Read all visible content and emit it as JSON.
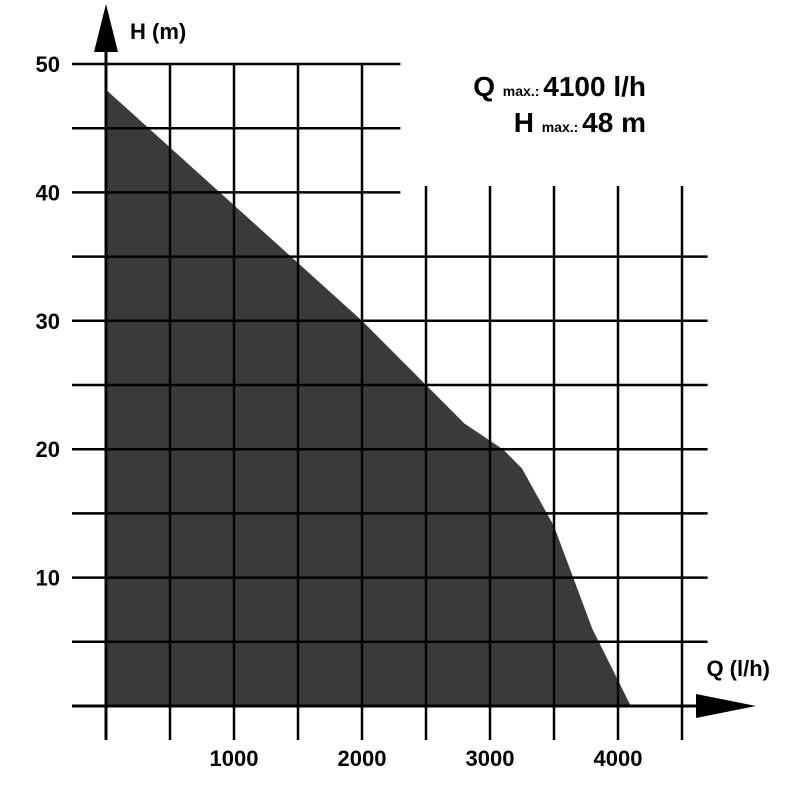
{
  "chart_data": {
    "type": "area",
    "xlabel": "Q (l/h)",
    "ylabel": "H (m)",
    "xlim": [
      0,
      4500
    ],
    "ylim": [
      0,
      50
    ],
    "x_ticks": [
      1000,
      2000,
      3000,
      4000
    ],
    "y_ticks": [
      10,
      20,
      30,
      40,
      50
    ],
    "grid": true,
    "fill_color": "#3a3a3a",
    "series": [
      {
        "x": [
          0,
          1000,
          2000,
          2800,
          3100,
          3250,
          3500,
          3800,
          4100
        ],
        "values": [
          48,
          39,
          30,
          22,
          20,
          18.5,
          14,
          6,
          0
        ]
      }
    ],
    "annotations": [
      {
        "prefix": "Q",
        "subscript": "max.:",
        "value": "4100 l/h"
      },
      {
        "prefix": "H",
        "subscript": "max.:",
        "value": "48 m"
      }
    ]
  }
}
